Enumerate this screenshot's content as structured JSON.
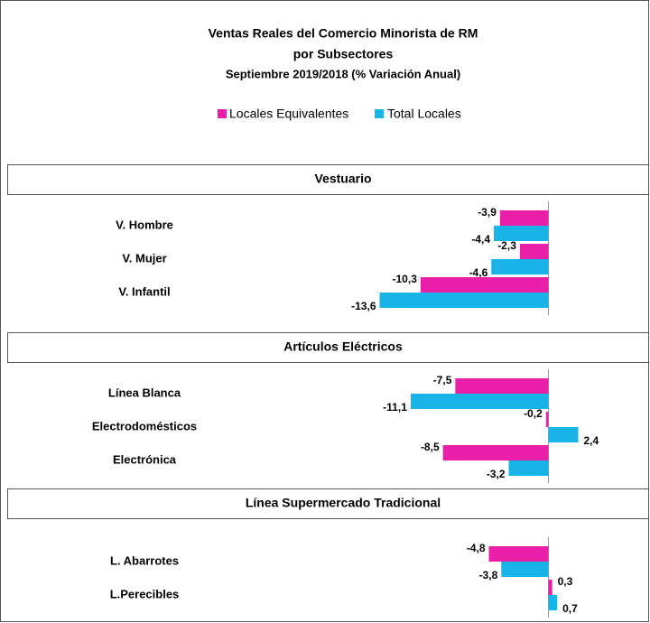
{
  "chart_data": {
    "type": "bar",
    "orientation": "horizontal",
    "title": "Ventas Reales del Comercio Minorista de RM",
    "subtitle": "por Subsectores",
    "subtitle2": "Septiembre 2019/2018 (% Variación Anual)",
    "sections": [
      {
        "title": "Vestuario",
        "categories": [
          "V. Hombre",
          "V. Mujer",
          "V. Infantil"
        ]
      },
      {
        "title": "Artículos Eléctricos",
        "categories": [
          "Línea Blanca",
          "Electrodomésticos",
          "Electrónica"
        ]
      },
      {
        "title": "Línea Supermercado Tradicional",
        "categories": [
          "L. Abarrotes",
          "L.Perecibles"
        ]
      }
    ],
    "series": [
      {
        "name": "Locales Equivalentes",
        "color": "#e91ea9",
        "values": [
          -3.9,
          -2.3,
          -10.3,
          -7.5,
          -0.2,
          -8.5,
          -4.8,
          0.3
        ],
        "value_labels": [
          "-3,9",
          "-2,3",
          "-10,3",
          "-7,5",
          "-0,2",
          "-8,5",
          "-4,8",
          "0,3"
        ]
      },
      {
        "name": "Total Locales",
        "color": "#18b4e8",
        "values": [
          -4.4,
          -4.6,
          -13.6,
          -11.1,
          2.4,
          -3.2,
          -3.8,
          0.7
        ],
        "value_labels": [
          "-4,4",
          "-4,6",
          "-13,6",
          "-11,1",
          "2,4",
          "-3,2",
          "-3,8",
          "0,7"
        ]
      }
    ],
    "xlim": [
      -14,
      6
    ]
  }
}
